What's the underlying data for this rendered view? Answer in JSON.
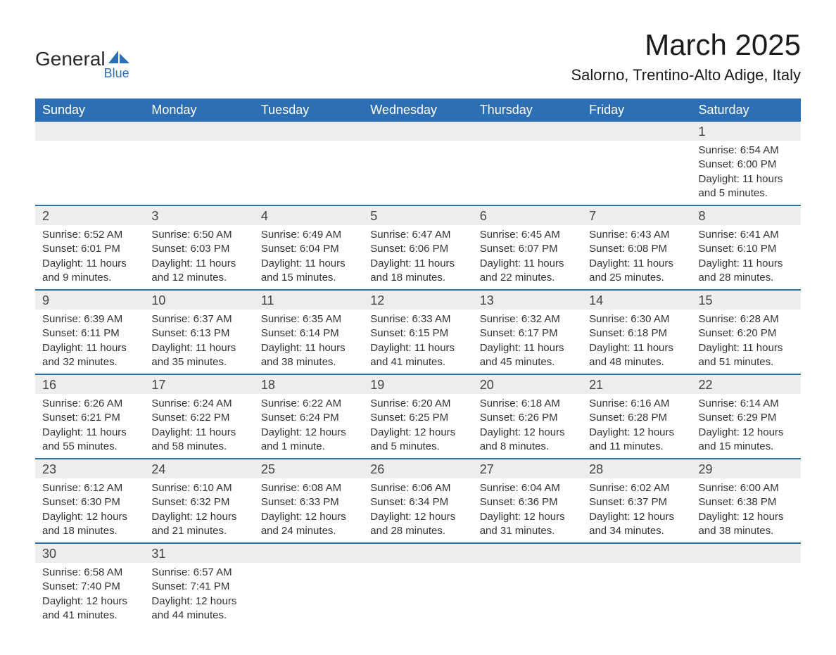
{
  "logo": {
    "main": "General",
    "sub": "Blue",
    "icon_color": "#2d6fb4"
  },
  "title": "March 2025",
  "location": "Salorno, Trentino-Alto Adige, Italy",
  "header_bg": "#2d6fb4",
  "header_fg": "#ffffff",
  "row_sep_color": "#2d6fb4",
  "daynum_bg": "#ededed",
  "text_color": "#333333",
  "font_family": "Arial, Helvetica, sans-serif",
  "title_fontsize": 42,
  "location_fontsize": 22,
  "header_fontsize": 18,
  "body_fontsize": 15,
  "days_of_week": [
    "Sunday",
    "Monday",
    "Tuesday",
    "Wednesday",
    "Thursday",
    "Friday",
    "Saturday"
  ],
  "weeks": [
    [
      null,
      null,
      null,
      null,
      null,
      null,
      {
        "n": "1",
        "sunrise": "Sunrise: 6:54 AM",
        "sunset": "Sunset: 6:00 PM",
        "daylight": "Daylight: 11 hours and 5 minutes."
      }
    ],
    [
      {
        "n": "2",
        "sunrise": "Sunrise: 6:52 AM",
        "sunset": "Sunset: 6:01 PM",
        "daylight": "Daylight: 11 hours and 9 minutes."
      },
      {
        "n": "3",
        "sunrise": "Sunrise: 6:50 AM",
        "sunset": "Sunset: 6:03 PM",
        "daylight": "Daylight: 11 hours and 12 minutes."
      },
      {
        "n": "4",
        "sunrise": "Sunrise: 6:49 AM",
        "sunset": "Sunset: 6:04 PM",
        "daylight": "Daylight: 11 hours and 15 minutes."
      },
      {
        "n": "5",
        "sunrise": "Sunrise: 6:47 AM",
        "sunset": "Sunset: 6:06 PM",
        "daylight": "Daylight: 11 hours and 18 minutes."
      },
      {
        "n": "6",
        "sunrise": "Sunrise: 6:45 AM",
        "sunset": "Sunset: 6:07 PM",
        "daylight": "Daylight: 11 hours and 22 minutes."
      },
      {
        "n": "7",
        "sunrise": "Sunrise: 6:43 AM",
        "sunset": "Sunset: 6:08 PM",
        "daylight": "Daylight: 11 hours and 25 minutes."
      },
      {
        "n": "8",
        "sunrise": "Sunrise: 6:41 AM",
        "sunset": "Sunset: 6:10 PM",
        "daylight": "Daylight: 11 hours and 28 minutes."
      }
    ],
    [
      {
        "n": "9",
        "sunrise": "Sunrise: 6:39 AM",
        "sunset": "Sunset: 6:11 PM",
        "daylight": "Daylight: 11 hours and 32 minutes."
      },
      {
        "n": "10",
        "sunrise": "Sunrise: 6:37 AM",
        "sunset": "Sunset: 6:13 PM",
        "daylight": "Daylight: 11 hours and 35 minutes."
      },
      {
        "n": "11",
        "sunrise": "Sunrise: 6:35 AM",
        "sunset": "Sunset: 6:14 PM",
        "daylight": "Daylight: 11 hours and 38 minutes."
      },
      {
        "n": "12",
        "sunrise": "Sunrise: 6:33 AM",
        "sunset": "Sunset: 6:15 PM",
        "daylight": "Daylight: 11 hours and 41 minutes."
      },
      {
        "n": "13",
        "sunrise": "Sunrise: 6:32 AM",
        "sunset": "Sunset: 6:17 PM",
        "daylight": "Daylight: 11 hours and 45 minutes."
      },
      {
        "n": "14",
        "sunrise": "Sunrise: 6:30 AM",
        "sunset": "Sunset: 6:18 PM",
        "daylight": "Daylight: 11 hours and 48 minutes."
      },
      {
        "n": "15",
        "sunrise": "Sunrise: 6:28 AM",
        "sunset": "Sunset: 6:20 PM",
        "daylight": "Daylight: 11 hours and 51 minutes."
      }
    ],
    [
      {
        "n": "16",
        "sunrise": "Sunrise: 6:26 AM",
        "sunset": "Sunset: 6:21 PM",
        "daylight": "Daylight: 11 hours and 55 minutes."
      },
      {
        "n": "17",
        "sunrise": "Sunrise: 6:24 AM",
        "sunset": "Sunset: 6:22 PM",
        "daylight": "Daylight: 11 hours and 58 minutes."
      },
      {
        "n": "18",
        "sunrise": "Sunrise: 6:22 AM",
        "sunset": "Sunset: 6:24 PM",
        "daylight": "Daylight: 12 hours and 1 minute."
      },
      {
        "n": "19",
        "sunrise": "Sunrise: 6:20 AM",
        "sunset": "Sunset: 6:25 PM",
        "daylight": "Daylight: 12 hours and 5 minutes."
      },
      {
        "n": "20",
        "sunrise": "Sunrise: 6:18 AM",
        "sunset": "Sunset: 6:26 PM",
        "daylight": "Daylight: 12 hours and 8 minutes."
      },
      {
        "n": "21",
        "sunrise": "Sunrise: 6:16 AM",
        "sunset": "Sunset: 6:28 PM",
        "daylight": "Daylight: 12 hours and 11 minutes."
      },
      {
        "n": "22",
        "sunrise": "Sunrise: 6:14 AM",
        "sunset": "Sunset: 6:29 PM",
        "daylight": "Daylight: 12 hours and 15 minutes."
      }
    ],
    [
      {
        "n": "23",
        "sunrise": "Sunrise: 6:12 AM",
        "sunset": "Sunset: 6:30 PM",
        "daylight": "Daylight: 12 hours and 18 minutes."
      },
      {
        "n": "24",
        "sunrise": "Sunrise: 6:10 AM",
        "sunset": "Sunset: 6:32 PM",
        "daylight": "Daylight: 12 hours and 21 minutes."
      },
      {
        "n": "25",
        "sunrise": "Sunrise: 6:08 AM",
        "sunset": "Sunset: 6:33 PM",
        "daylight": "Daylight: 12 hours and 24 minutes."
      },
      {
        "n": "26",
        "sunrise": "Sunrise: 6:06 AM",
        "sunset": "Sunset: 6:34 PM",
        "daylight": "Daylight: 12 hours and 28 minutes."
      },
      {
        "n": "27",
        "sunrise": "Sunrise: 6:04 AM",
        "sunset": "Sunset: 6:36 PM",
        "daylight": "Daylight: 12 hours and 31 minutes."
      },
      {
        "n": "28",
        "sunrise": "Sunrise: 6:02 AM",
        "sunset": "Sunset: 6:37 PM",
        "daylight": "Daylight: 12 hours and 34 minutes."
      },
      {
        "n": "29",
        "sunrise": "Sunrise: 6:00 AM",
        "sunset": "Sunset: 6:38 PM",
        "daylight": "Daylight: 12 hours and 38 minutes."
      }
    ],
    [
      {
        "n": "30",
        "sunrise": "Sunrise: 6:58 AM",
        "sunset": "Sunset: 7:40 PM",
        "daylight": "Daylight: 12 hours and 41 minutes."
      },
      {
        "n": "31",
        "sunrise": "Sunrise: 6:57 AM",
        "sunset": "Sunset: 7:41 PM",
        "daylight": "Daylight: 12 hours and 44 minutes."
      },
      null,
      null,
      null,
      null,
      null
    ]
  ]
}
